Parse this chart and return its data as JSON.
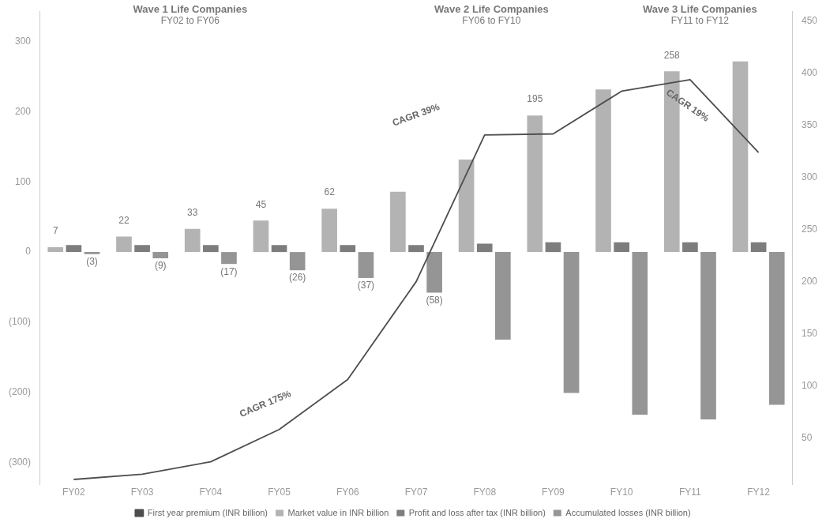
{
  "chart_data": {
    "type": "bar",
    "categories": [
      "FY02",
      "FY03",
      "FY04",
      "FY05",
      "FY06",
      "FY07",
      "FY08",
      "FY09",
      "FY10",
      "FY11",
      "FY12"
    ],
    "series": [
      {
        "name": "Market value in INR billion",
        "color": "#b3b3b3",
        "values": [
          7,
          22,
          33,
          45,
          62,
          86,
          132,
          195,
          232,
          258,
          272
        ],
        "value_labels": [
          "7",
          "22",
          "33",
          "45",
          "62",
          null,
          null,
          "195",
          null,
          "258",
          null
        ]
      },
      {
        "name": "Profit and loss after tax (INR billion)",
        "color": "#7d7d7d",
        "values": [
          10,
          10,
          10,
          10,
          10,
          10,
          12,
          14,
          14,
          14,
          14
        ]
      },
      {
        "name": "Accumulated losses (INR billion)",
        "color": "#959595",
        "values": [
          -3,
          -9,
          -17,
          -26,
          -37,
          -58,
          -125,
          -201,
          -232,
          -239,
          -218
        ],
        "value_labels": [
          "(3)",
          "(9)",
          "(17)",
          "(26)",
          "(37)",
          "(58)",
          null,
          null,
          null,
          null,
          null
        ]
      },
      {
        "name": "First year premium (INR billion)",
        "type": "line",
        "axis": "y2",
        "color": "#4d4d4d",
        "values": [
          10,
          15,
          27,
          58,
          106,
          200,
          341,
          342,
          383,
          394,
          324
        ]
      }
    ],
    "ylim": [
      -332,
      344
    ],
    "yticks": [
      {
        "value": -300,
        "label": "(300)"
      },
      {
        "value": -200,
        "label": "(200)"
      },
      {
        "value": -100,
        "label": "(100)"
      },
      0,
      100,
      200,
      300
    ],
    "y2lim": [
      5,
      460
    ],
    "y2ticks": [
      50,
      100,
      150,
      200,
      250,
      300,
      350,
      400,
      450
    ],
    "grid": false,
    "legend": "bottom",
    "marker": "none",
    "annotations": [
      "Wave 1 Life Companies",
      "FY02 to FY06",
      "Wave 2 Life Companies",
      "FY06 to FY10",
      "Wave 3 Life Companies",
      "FY11 to FY12",
      "CAGR 175%",
      "CAGR 39%",
      "CAGR 19%"
    ]
  }
}
